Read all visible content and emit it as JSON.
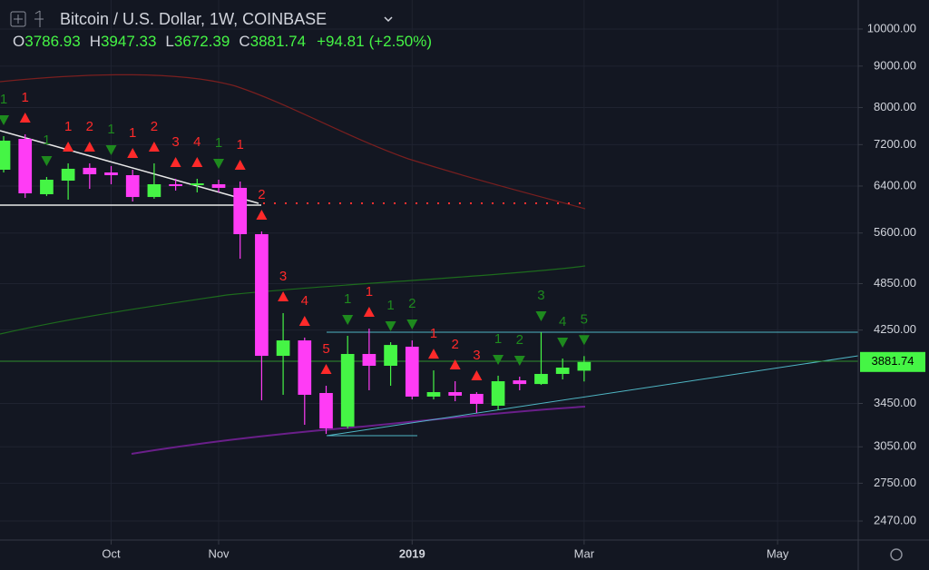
{
  "chart_data": {
    "type": "candlestick",
    "title": "Bitcoin / U.S. Dollar, 1W, COINBASE",
    "ohlc_labels": [
      "O",
      "H",
      "L",
      "C"
    ],
    "change": "+94.81",
    "change_pct": "(+2.50%)",
    "open": [
      6704,
      7318,
      6253,
      6499,
      6740,
      6652,
      6601,
      6204,
      6433,
      6416,
      6433,
      6367,
      5582,
      3950,
      4127,
      3554,
      3231,
      3971,
      3840,
      4054,
      3518,
      3563,
      3545,
      3428,
      3684,
      3646,
      3752,
      3786.93
    ],
    "high": [
      7375,
      7414,
      6567,
      6826,
      6826,
      6774,
      6704,
      6826,
      6533,
      6533,
      6516,
      6483,
      5626,
      4460,
      4160,
      3628,
      4181,
      4268,
      4106,
      4127,
      3790,
      3675,
      3563,
      3733,
      3723,
      4224,
      3920,
      3947.33
    ],
    "low": [
      6652,
      6188,
      6221,
      6157,
      6350,
      6433,
      6125,
      6173,
      6318,
      6286,
      6286,
      5206,
      3481,
      3536,
      3247,
      3164,
      3214,
      3582,
      3628,
      3490,
      3490,
      3472,
      3358,
      3384,
      3582,
      3637,
      3694,
      3672.39
    ],
    "close": [
      7281,
      6269,
      6516,
      6722,
      6618,
      6601,
      6204,
      6433,
      6400,
      6449,
      6367,
      5582,
      3950,
      4127,
      3536,
      3214,
      3971,
      3840,
      4074,
      3518,
      3563,
      3527,
      3446,
      3675,
      3646,
      3752,
      3820,
      3881.74
    ],
    "up_color": "#45f545",
    "down_color": "#ff3cf5",
    "td_markers": [
      {
        "index": 0,
        "label": "1",
        "color": "#1e8a1e"
      },
      {
        "index": 1,
        "label": "1",
        "color": "#ff2a2a"
      },
      {
        "index": 2,
        "label": "1",
        "color": "#1e8a1e"
      },
      {
        "index": 3,
        "label": "1",
        "color": "#ff2a2a"
      },
      {
        "index": 4,
        "label": "2",
        "color": "#ff2a2a"
      },
      {
        "index": 5,
        "label": "1",
        "color": "#1e8a1e"
      },
      {
        "index": 6,
        "label": "1",
        "color": "#ff2a2a"
      },
      {
        "index": 7,
        "label": "2",
        "color": "#ff2a2a"
      },
      {
        "index": 8,
        "label": "3",
        "color": "#ff2a2a"
      },
      {
        "index": 9,
        "label": "4",
        "color": "#ff2a2a"
      },
      {
        "index": 10,
        "label": "1",
        "color": "#1e8a1e"
      },
      {
        "index": 11,
        "label": "1",
        "color": "#ff2a2a"
      },
      {
        "index": 12,
        "label": "2",
        "color": "#ff2a2a"
      },
      {
        "index": 13,
        "label": "3",
        "color": "#ff2a2a"
      },
      {
        "index": 14,
        "label": "4",
        "color": "#ff2a2a"
      },
      {
        "index": 15,
        "label": "5",
        "color": "#ff2a2a"
      },
      {
        "index": 16,
        "label": "1",
        "color": "#1e8a1e"
      },
      {
        "index": 17,
        "label": "1",
        "color": "#ff2a2a"
      },
      {
        "index": 18,
        "label": "1",
        "color": "#1e8a1e"
      },
      {
        "index": 19,
        "label": "2",
        "color": "#1e8a1e"
      },
      {
        "index": 20,
        "label": "1",
        "color": "#ff2a2a"
      },
      {
        "index": 21,
        "label": "2",
        "color": "#ff2a2a"
      },
      {
        "index": 22,
        "label": "3",
        "color": "#ff2a2a"
      },
      {
        "index": 23,
        "label": "1",
        "color": "#1e8a1e"
      },
      {
        "index": 24,
        "label": "2",
        "color": "#1e8a1e"
      },
      {
        "index": 25,
        "label": "3",
        "color": "#1e8a1e"
      },
      {
        "index": 26,
        "label": "4",
        "color": "#1e8a1e"
      },
      {
        "index": 27,
        "label": "5",
        "color": "#1e8a1e"
      }
    ],
    "xlim": [
      -0.17,
      39.75
    ],
    "xticks": [
      {
        "value": 5,
        "label": "Oct"
      },
      {
        "value": 10,
        "label": "Nov"
      },
      {
        "value": 19,
        "label": "2019"
      },
      {
        "value": 27,
        "label": "Mar"
      },
      {
        "value": 36,
        "label": "May"
      }
    ],
    "ylim": [
      2340,
      10860
    ],
    "log_scale": true,
    "yticks": [
      {
        "value": 10000,
        "label": "10000.00"
      },
      {
        "value": 9000,
        "label": "9000.00"
      },
      {
        "value": 8000,
        "label": "8000.00"
      },
      {
        "value": 7200,
        "label": "7200.00"
      },
      {
        "value": 6400,
        "label": "6400.00"
      },
      {
        "value": 5600,
        "label": "5600.00"
      },
      {
        "value": 4850,
        "label": "4850.00"
      },
      {
        "value": 4250,
        "label": "4250.00"
      },
      {
        "value": 3450,
        "label": "3450.00"
      },
      {
        "value": 3050,
        "label": "3050.00"
      },
      {
        "value": 2750,
        "label": "2750.00"
      },
      {
        "value": 2470,
        "label": "2470.00"
      }
    ],
    "grid": true
  }
}
